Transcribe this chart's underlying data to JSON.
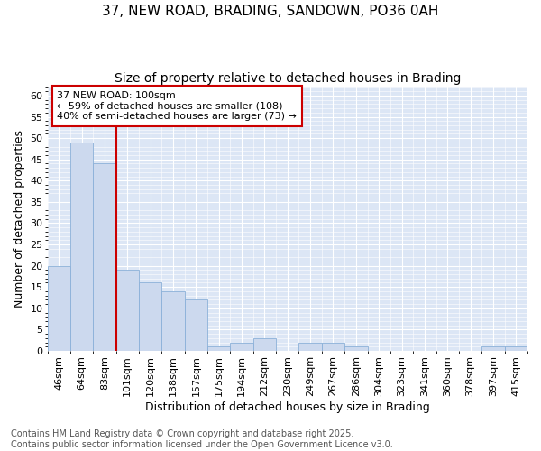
{
  "title": "37, NEW ROAD, BRADING, SANDOWN, PO36 0AH",
  "subtitle": "Size of property relative to detached houses in Brading",
  "xlabel": "Distribution of detached houses by size in Brading",
  "ylabel": "Number of detached properties",
  "bins": [
    "46sqm",
    "64sqm",
    "83sqm",
    "101sqm",
    "120sqm",
    "138sqm",
    "157sqm",
    "175sqm",
    "194sqm",
    "212sqm",
    "230sqm",
    "249sqm",
    "267sqm",
    "286sqm",
    "304sqm",
    "323sqm",
    "341sqm",
    "360sqm",
    "378sqm",
    "397sqm",
    "415sqm"
  ],
  "values": [
    20,
    49,
    44,
    19,
    16,
    14,
    12,
    1,
    2,
    3,
    0,
    2,
    2,
    1,
    0,
    0,
    0,
    0,
    0,
    1,
    1
  ],
  "bar_color": "#ccd9ee",
  "bar_edge_color": "#8ab0d8",
  "vline_x_idx": 3,
  "vline_color": "#cc0000",
  "annotation_text": "37 NEW ROAD: 100sqm\n← 59% of detached houses are smaller (108)\n40% of semi-detached houses are larger (73) →",
  "annotation_box_color": "#ffffff",
  "annotation_box_edge": "#cc0000",
  "ylim": [
    0,
    62
  ],
  "yticks": [
    0,
    5,
    10,
    15,
    20,
    25,
    30,
    35,
    40,
    45,
    50,
    55,
    60
  ],
  "fig_bg_color": "#ffffff",
  "plot_bg_color": "#dce6f5",
  "grid_color": "#ffffff",
  "footer": "Contains HM Land Registry data © Crown copyright and database right 2025.\nContains public sector information licensed under the Open Government Licence v3.0.",
  "title_fontsize": 11,
  "subtitle_fontsize": 10,
  "xlabel_fontsize": 9,
  "ylabel_fontsize": 9,
  "tick_fontsize": 8,
  "annotation_fontsize": 8,
  "footer_fontsize": 7
}
